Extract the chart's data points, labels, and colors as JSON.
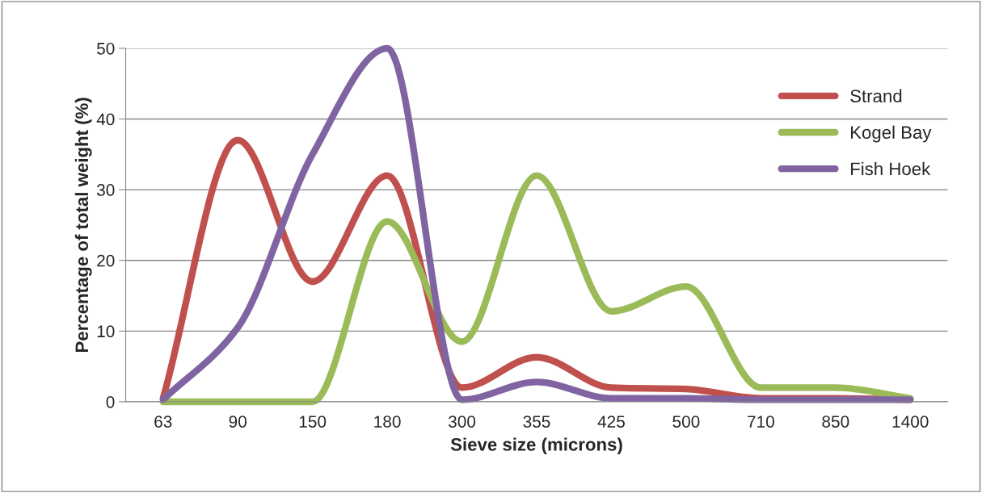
{
  "chart_data": {
    "type": "line",
    "xlabel": "Sieve size (microns)",
    "ylabel": "Percentage of total weight (%)",
    "categories": [
      "63",
      "90",
      "150",
      "180",
      "300",
      "355",
      "425",
      "500",
      "710",
      "850",
      "1400"
    ],
    "series": [
      {
        "name": "Strand",
        "color": "#c0504d",
        "values": [
          0.5,
          37,
          17,
          32,
          2,
          6.3,
          2,
          1.8,
          0.5,
          0.5,
          0.3
        ]
      },
      {
        "name": "Kogel Bay",
        "color": "#9bbb59",
        "values": [
          0,
          0,
          0,
          25.5,
          8.5,
          32,
          12.8,
          16.3,
          2,
          2,
          0.5
        ]
      },
      {
        "name": "Fish Hoek",
        "color": "#8064a2",
        "values": [
          0.3,
          10.5,
          35,
          50,
          0.3,
          2.8,
          0.5,
          0.5,
          0.3,
          0.3,
          0.3
        ]
      }
    ],
    "ylim": [
      0,
      50
    ],
    "yticks": [
      0,
      10,
      20,
      30,
      40,
      50
    ],
    "grid": "y",
    "legend": "top right",
    "marker": "none",
    "line_style": "solid"
  }
}
